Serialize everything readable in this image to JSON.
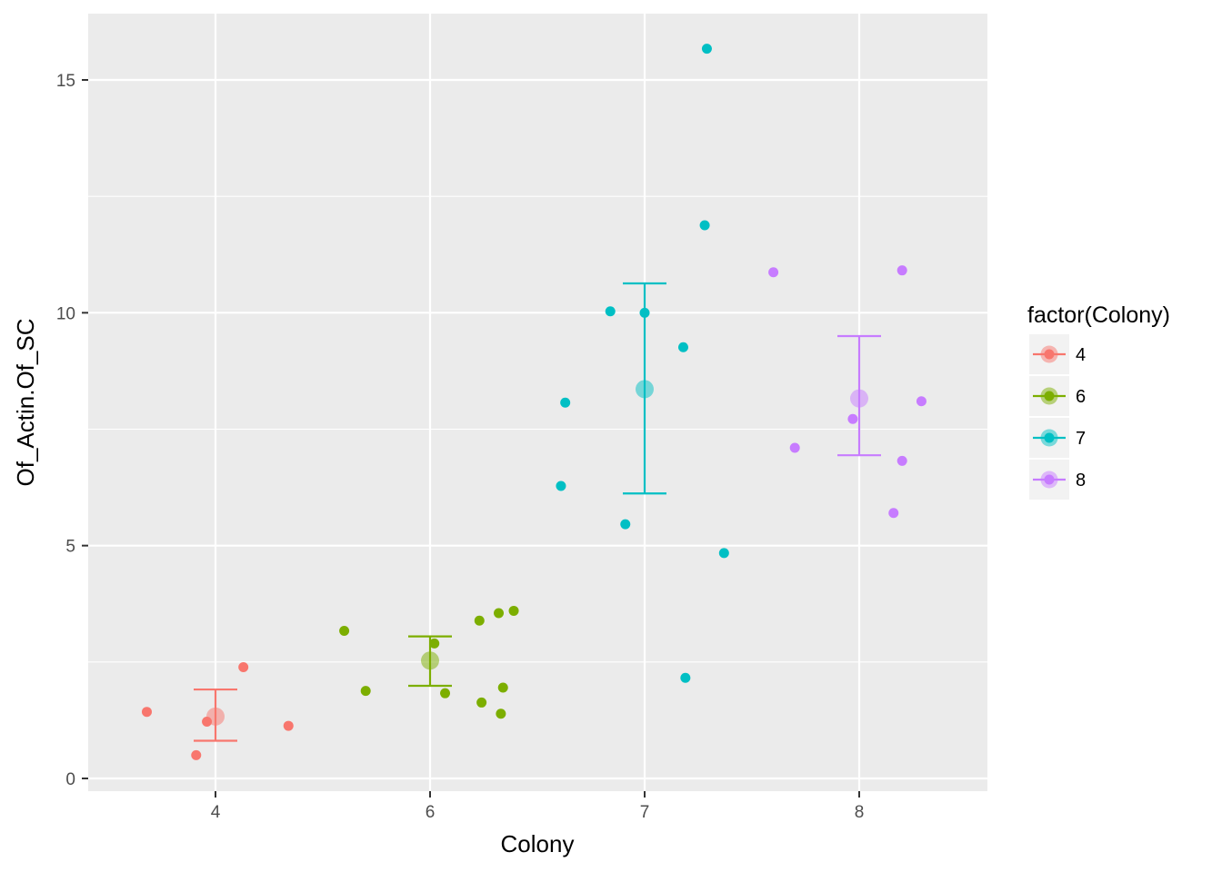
{
  "chart_data": {
    "type": "scatter",
    "xlabel": "Colony",
    "ylabel": "Of_Actin.Of_SC",
    "x_categories": [
      "4",
      "6",
      "7",
      "8"
    ],
    "y_ticks": [
      0,
      5,
      10,
      15
    ],
    "y_tick_labels": [
      "0",
      "5",
      "10",
      "15"
    ],
    "ylim": [
      -0.25,
      16.5
    ],
    "grid": true,
    "legend": {
      "title": "factor(Colony)",
      "position": "right",
      "entries": [
        "4",
        "6",
        "7",
        "8"
      ]
    },
    "series": [
      {
        "category": "4",
        "color": "#F8766D",
        "points": [
          [
            3.68,
            1.43
          ],
          [
            3.91,
            0.5
          ],
          [
            3.96,
            1.22
          ],
          [
            4.13,
            2.39
          ],
          [
            4.34,
            1.13
          ]
        ],
        "mean": 1.33,
        "error_low": 0.81,
        "error_high": 1.91
      },
      {
        "category": "6",
        "color": "#7CAE00",
        "points": [
          [
            5.6,
            3.17
          ],
          [
            5.7,
            1.88
          ],
          [
            6.02,
            2.9
          ],
          [
            6.07,
            1.83
          ],
          [
            6.23,
            3.39
          ],
          [
            6.24,
            1.63
          ],
          [
            6.32,
            3.55
          ],
          [
            6.33,
            1.39
          ],
          [
            6.34,
            1.95
          ],
          [
            6.39,
            3.6
          ]
        ],
        "mean": 2.53,
        "error_low": 1.99,
        "error_high": 3.05
      },
      {
        "category": "7",
        "color": "#00BFC4",
        "points": [
          [
            6.61,
            6.28
          ],
          [
            6.63,
            8.07
          ],
          [
            6.84,
            10.03
          ],
          [
            6.91,
            5.46
          ],
          [
            7.0,
            10.0
          ],
          [
            7.18,
            9.26
          ],
          [
            7.19,
            2.16
          ],
          [
            7.28,
            11.88
          ],
          [
            7.29,
            15.67
          ],
          [
            7.37,
            4.84
          ]
        ],
        "mean": 8.36,
        "error_low": 6.12,
        "error_high": 10.63
      },
      {
        "category": "8",
        "color": "#C77CFF",
        "points": [
          [
            7.6,
            10.87
          ],
          [
            7.7,
            7.1
          ],
          [
            7.97,
            7.72
          ],
          [
            8.16,
            5.7
          ],
          [
            8.2,
            6.82
          ],
          [
            8.2,
            10.91
          ],
          [
            8.29,
            8.1
          ]
        ],
        "mean": 8.16,
        "error_low": 6.94,
        "error_high": 9.5
      }
    ]
  }
}
